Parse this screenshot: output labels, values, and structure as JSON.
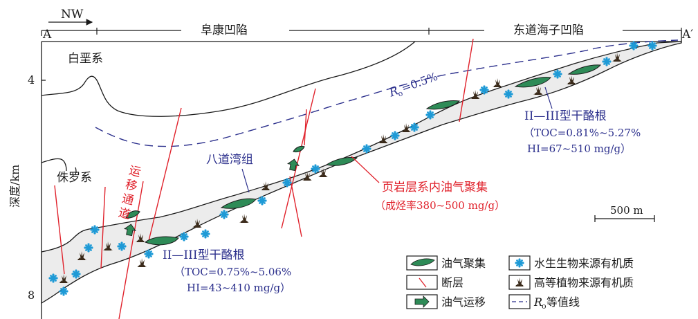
{
  "header": {
    "direction": "NW",
    "point_left": "A",
    "point_right": "A′",
    "basin_left": "阜康凹陷",
    "basin_right": "东道海子凹陷"
  },
  "axis": {
    "ylabel": "深度/km",
    "ticks": [
      "4",
      "8"
    ]
  },
  "formations": {
    "cretaceous": "白垩系",
    "jurassic": "侏罗系",
    "badaowan": "八道湾组"
  },
  "ro_label": {
    "main": "R",
    "sub": "o",
    "value": "=0.5%"
  },
  "migration_text": [
    "运",
    "移",
    "通",
    "道"
  ],
  "kerogen_left": {
    "type": "II—III型干酪根",
    "toc": "（TOC=0.75%~5.06%",
    "hi": "HI=43~410 mg/g）"
  },
  "kerogen_right": {
    "type": "II—III型干酪根",
    "toc": "（TOC=0.81%~5.27%",
    "hi": "HI=67~510 mg/g）"
  },
  "accumulation": {
    "title": "页岩层系内油气聚集",
    "rate": "（成烃率380~500 mg/g）"
  },
  "scale_bar": "500 m",
  "legend": {
    "oil_gas_accumulation": "油气聚集",
    "aquatic_om": "水生生物来源有机质",
    "fault": "断层",
    "higher_plant_om": "高等植物来源有机质",
    "migration": "油气运移",
    "ro_main": "R",
    "ro_sub": "o",
    "ro_suffix": "等值线"
  },
  "colors": {
    "fault": "#e0202a",
    "oil": "#2e8b57",
    "aquatic": "#1e9ad6",
    "shale_fill": "#ececec",
    "blue_text": "#2b2f8c",
    "red_text": "#e0202a"
  }
}
